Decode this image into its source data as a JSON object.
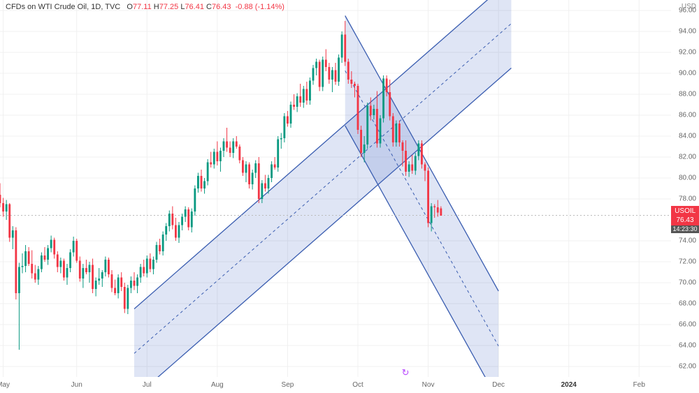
{
  "header": {
    "symbol_desc": "CFDs on WTI Crude Oil",
    "interval": "1D",
    "exchange": "TVC",
    "o_label": "O",
    "o_val": "77.11",
    "h_label": "H",
    "h_val": "77.25",
    "l_label": "L",
    "l_val": "76.41",
    "c_label": "C",
    "c_val": "76.43",
    "chg": "-0.88",
    "chg_pct": "(-1.14%)"
  },
  "yaxis": {
    "unit": "USD",
    "min": 61,
    "max": 97,
    "ticks": [
      62,
      64,
      66,
      68,
      70,
      72,
      74,
      78,
      80,
      82,
      84,
      86,
      88,
      90,
      92,
      94,
      96
    ],
    "price_tag": {
      "symbol": "USOIL",
      "value": "76.43",
      "countdown": "14:23:30",
      "price": 76.43
    }
  },
  "xaxis": {
    "start_idx": 0,
    "end_idx": 210,
    "ticks": [
      {
        "idx": 1,
        "label": "May"
      },
      {
        "idx": 24,
        "label": "Jun"
      },
      {
        "idx": 46,
        "label": "Jul"
      },
      {
        "idx": 68,
        "label": "Aug"
      },
      {
        "idx": 90,
        "label": "Sep"
      },
      {
        "idx": 112,
        "label": "Oct"
      },
      {
        "idx": 134,
        "label": "Nov"
      },
      {
        "idx": 156,
        "label": "Dec"
      },
      {
        "idx": 178,
        "label": "2024",
        "bold": true
      },
      {
        "idx": 200,
        "label": "Feb"
      }
    ]
  },
  "replay_marker_idx": 127,
  "colors": {
    "up_body": "#089981",
    "up_border": "#089981",
    "down_body": "#f23645",
    "down_border": "#f23645",
    "wick_up": "#089981",
    "wick_down": "#f23645",
    "channel_fill": "rgba(77,112,200,0.18)",
    "channel_line": "#3a5db0",
    "grid": "#f0f0f0",
    "priceline": "#bbbbbb",
    "background": "#ffffff"
  },
  "channels": [
    {
      "p1": {
        "idx": 42,
        "price": 67.5
      },
      "p2": {
        "idx": 160,
        "price": 99.0
      },
      "width_price": 8.5
    },
    {
      "p1": {
        "idx": 108,
        "price": 95.5
      },
      "p2": {
        "idx": 156,
        "price": 69.2
      },
      "width_price": 10.5
    }
  ],
  "candles": [
    {
      "i": 0,
      "o": 78.4,
      "h": 79.5,
      "l": 77.2,
      "c": 77.6
    },
    {
      "i": 1,
      "o": 77.6,
      "h": 78.1,
      "l": 76.3,
      "c": 76.8
    },
    {
      "i": 2,
      "o": 76.8,
      "h": 77.9,
      "l": 76.0,
      "c": 77.5
    },
    {
      "i": 3,
      "o": 77.5,
      "h": 77.6,
      "l": 73.9,
      "c": 74.3
    },
    {
      "i": 4,
      "o": 74.3,
      "h": 75.4,
      "l": 73.2,
      "c": 75.0
    },
    {
      "i": 5,
      "o": 75.0,
      "h": 75.3,
      "l": 68.4,
      "c": 69.0
    },
    {
      "i": 6,
      "o": 69.0,
      "h": 71.9,
      "l": 63.6,
      "c": 71.5
    },
    {
      "i": 7,
      "o": 71.5,
      "h": 72.8,
      "l": 70.9,
      "c": 71.6
    },
    {
      "i": 8,
      "o": 71.6,
      "h": 73.6,
      "l": 71.0,
      "c": 73.0
    },
    {
      "i": 9,
      "o": 73.0,
      "h": 73.4,
      "l": 71.6,
      "c": 71.8
    },
    {
      "i": 10,
      "o": 71.8,
      "h": 73.1,
      "l": 70.4,
      "c": 70.9
    },
    {
      "i": 11,
      "o": 70.9,
      "h": 71.7,
      "l": 70.0,
      "c": 70.3
    },
    {
      "i": 12,
      "o": 70.3,
      "h": 71.6,
      "l": 69.8,
      "c": 71.3
    },
    {
      "i": 13,
      "o": 71.3,
      "h": 72.9,
      "l": 71.0,
      "c": 72.6
    },
    {
      "i": 14,
      "o": 72.6,
      "h": 73.4,
      "l": 72.0,
      "c": 72.2
    },
    {
      "i": 15,
      "o": 72.2,
      "h": 73.6,
      "l": 71.7,
      "c": 73.3
    },
    {
      "i": 16,
      "o": 73.3,
      "h": 74.5,
      "l": 72.9,
      "c": 74.1
    },
    {
      "i": 17,
      "o": 74.1,
      "h": 74.3,
      "l": 72.3,
      "c": 72.7
    },
    {
      "i": 18,
      "o": 72.7,
      "h": 73.0,
      "l": 71.0,
      "c": 71.5
    },
    {
      "i": 19,
      "o": 71.5,
      "h": 72.4,
      "l": 70.9,
      "c": 72.1
    },
    {
      "i": 20,
      "o": 72.1,
      "h": 72.3,
      "l": 70.2,
      "c": 70.5
    },
    {
      "i": 21,
      "o": 70.5,
      "h": 71.8,
      "l": 69.8,
      "c": 71.4
    },
    {
      "i": 22,
      "o": 71.4,
      "h": 73.2,
      "l": 71.0,
      "c": 72.9
    },
    {
      "i": 23,
      "o": 72.9,
      "h": 74.4,
      "l": 72.5,
      "c": 74.0
    },
    {
      "i": 24,
      "o": 74.0,
      "h": 74.2,
      "l": 71.9,
      "c": 72.1
    },
    {
      "i": 25,
      "o": 72.1,
      "h": 72.5,
      "l": 70.1,
      "c": 70.4
    },
    {
      "i": 26,
      "o": 70.4,
      "h": 71.8,
      "l": 69.5,
      "c": 71.4
    },
    {
      "i": 27,
      "o": 71.4,
      "h": 72.2,
      "l": 70.8,
      "c": 71.0
    },
    {
      "i": 28,
      "o": 71.0,
      "h": 72.0,
      "l": 70.0,
      "c": 71.7
    },
    {
      "i": 29,
      "o": 71.7,
      "h": 72.3,
      "l": 69.0,
      "c": 69.4
    },
    {
      "i": 30,
      "o": 69.4,
      "h": 70.5,
      "l": 68.7,
      "c": 70.2
    },
    {
      "i": 31,
      "o": 70.2,
      "h": 71.4,
      "l": 69.8,
      "c": 70.4
    },
    {
      "i": 32,
      "o": 70.4,
      "h": 71.2,
      "l": 69.6,
      "c": 71.0
    },
    {
      "i": 33,
      "o": 71.0,
      "h": 72.5,
      "l": 70.6,
      "c": 72.2
    },
    {
      "i": 34,
      "o": 72.2,
      "h": 72.4,
      "l": 70.5,
      "c": 70.8
    },
    {
      "i": 35,
      "o": 70.8,
      "h": 71.2,
      "l": 69.1,
      "c": 69.5
    },
    {
      "i": 36,
      "o": 69.5,
      "h": 70.3,
      "l": 68.8,
      "c": 69.0
    },
    {
      "i": 37,
      "o": 69.0,
      "h": 70.8,
      "l": 68.5,
      "c": 70.5
    },
    {
      "i": 38,
      "o": 70.5,
      "h": 71.0,
      "l": 69.2,
      "c": 69.6
    },
    {
      "i": 39,
      "o": 69.6,
      "h": 70.0,
      "l": 67.1,
      "c": 67.5
    },
    {
      "i": 40,
      "o": 67.5,
      "h": 69.8,
      "l": 67.0,
      "c": 69.5
    },
    {
      "i": 41,
      "o": 69.5,
      "h": 70.6,
      "l": 69.0,
      "c": 70.2
    },
    {
      "i": 42,
      "o": 70.2,
      "h": 71.0,
      "l": 69.3,
      "c": 69.7
    },
    {
      "i": 43,
      "o": 69.7,
      "h": 70.8,
      "l": 69.0,
      "c": 70.5
    },
    {
      "i": 44,
      "o": 70.5,
      "h": 71.8,
      "l": 70.0,
      "c": 71.5
    },
    {
      "i": 45,
      "o": 71.5,
      "h": 72.2,
      "l": 70.6,
      "c": 70.9
    },
    {
      "i": 46,
      "o": 70.9,
      "h": 72.6,
      "l": 70.5,
      "c": 72.3
    },
    {
      "i": 47,
      "o": 72.3,
      "h": 72.8,
      "l": 71.0,
      "c": 71.3
    },
    {
      "i": 48,
      "o": 71.3,
      "h": 72.5,
      "l": 70.8,
      "c": 72.2
    },
    {
      "i": 49,
      "o": 72.2,
      "h": 73.9,
      "l": 71.9,
      "c": 73.6
    },
    {
      "i": 50,
      "o": 73.6,
      "h": 74.2,
      "l": 72.7,
      "c": 73.0
    },
    {
      "i": 51,
      "o": 73.0,
      "h": 74.9,
      "l": 72.6,
      "c": 74.6
    },
    {
      "i": 52,
      "o": 74.6,
      "h": 75.7,
      "l": 74.0,
      "c": 75.4
    },
    {
      "i": 53,
      "o": 75.4,
      "h": 76.9,
      "l": 74.9,
      "c": 76.6
    },
    {
      "i": 54,
      "o": 76.6,
      "h": 77.3,
      "l": 75.1,
      "c": 75.5
    },
    {
      "i": 55,
      "o": 75.5,
      "h": 76.2,
      "l": 74.0,
      "c": 74.3
    },
    {
      "i": 56,
      "o": 74.3,
      "h": 75.8,
      "l": 73.8,
      "c": 75.5
    },
    {
      "i": 57,
      "o": 75.5,
      "h": 76.6,
      "l": 75.0,
      "c": 76.3
    },
    {
      "i": 58,
      "o": 76.3,
      "h": 77.3,
      "l": 75.8,
      "c": 77.0
    },
    {
      "i": 59,
      "o": 77.0,
      "h": 77.2,
      "l": 75.0,
      "c": 75.3
    },
    {
      "i": 60,
      "o": 75.3,
      "h": 77.1,
      "l": 74.8,
      "c": 76.8
    },
    {
      "i": 61,
      "o": 76.8,
      "h": 79.3,
      "l": 76.4,
      "c": 79.0
    },
    {
      "i": 62,
      "o": 79.0,
      "h": 80.5,
      "l": 78.6,
      "c": 80.2
    },
    {
      "i": 63,
      "o": 80.2,
      "h": 80.8,
      "l": 78.7,
      "c": 79.0
    },
    {
      "i": 64,
      "o": 79.0,
      "h": 80.0,
      "l": 78.5,
      "c": 79.7
    },
    {
      "i": 65,
      "o": 79.7,
      "h": 81.8,
      "l": 79.3,
      "c": 81.5
    },
    {
      "i": 66,
      "o": 81.5,
      "h": 82.5,
      "l": 81.0,
      "c": 81.3
    },
    {
      "i": 67,
      "o": 81.3,
      "h": 82.8,
      "l": 80.9,
      "c": 82.5
    },
    {
      "i": 68,
      "o": 82.5,
      "h": 83.5,
      "l": 81.2,
      "c": 81.6
    },
    {
      "i": 69,
      "o": 81.6,
      "h": 82.9,
      "l": 80.6,
      "c": 82.6
    },
    {
      "i": 70,
      "o": 82.6,
      "h": 83.8,
      "l": 82.0,
      "c": 83.5
    },
    {
      "i": 71,
      "o": 83.5,
      "h": 84.8,
      "l": 82.5,
      "c": 82.9
    },
    {
      "i": 72,
      "o": 82.9,
      "h": 83.5,
      "l": 82.0,
      "c": 82.4
    },
    {
      "i": 73,
      "o": 82.4,
      "h": 83.8,
      "l": 81.9,
      "c": 83.5
    },
    {
      "i": 74,
      "o": 83.5,
      "h": 84.0,
      "l": 82.8,
      "c": 83.0
    },
    {
      "i": 75,
      "o": 83.0,
      "h": 83.2,
      "l": 81.4,
      "c": 81.7
    },
    {
      "i": 76,
      "o": 81.7,
      "h": 82.0,
      "l": 80.2,
      "c": 80.5
    },
    {
      "i": 77,
      "o": 80.5,
      "h": 81.6,
      "l": 79.6,
      "c": 81.3
    },
    {
      "i": 78,
      "o": 81.3,
      "h": 81.5,
      "l": 79.0,
      "c": 79.4
    },
    {
      "i": 79,
      "o": 79.4,
      "h": 80.8,
      "l": 78.9,
      "c": 80.5
    },
    {
      "i": 80,
      "o": 80.5,
      "h": 81.7,
      "l": 80.0,
      "c": 81.4
    },
    {
      "i": 81,
      "o": 81.4,
      "h": 82.0,
      "l": 77.6,
      "c": 78.0
    },
    {
      "i": 82,
      "o": 78.0,
      "h": 79.8,
      "l": 77.6,
      "c": 79.5
    },
    {
      "i": 83,
      "o": 79.5,
      "h": 80.3,
      "l": 78.7,
      "c": 79.0
    },
    {
      "i": 84,
      "o": 79.0,
      "h": 80.3,
      "l": 78.5,
      "c": 80.0
    },
    {
      "i": 85,
      "o": 80.0,
      "h": 81.6,
      "l": 79.6,
      "c": 81.3
    },
    {
      "i": 86,
      "o": 81.3,
      "h": 82.0,
      "l": 80.8,
      "c": 81.0
    },
    {
      "i": 87,
      "o": 81.0,
      "h": 84.0,
      "l": 80.6,
      "c": 83.7
    },
    {
      "i": 88,
      "o": 83.7,
      "h": 84.3,
      "l": 82.8,
      "c": 83.8
    },
    {
      "i": 89,
      "o": 83.8,
      "h": 86.2,
      "l": 83.4,
      "c": 85.9
    },
    {
      "i": 90,
      "o": 85.9,
      "h": 86.4,
      "l": 84.9,
      "c": 85.2
    },
    {
      "i": 91,
      "o": 85.2,
      "h": 87.3,
      "l": 84.8,
      "c": 87.0
    },
    {
      "i": 92,
      "o": 87.0,
      "h": 88.0,
      "l": 86.5,
      "c": 86.8
    },
    {
      "i": 93,
      "o": 86.8,
      "h": 88.1,
      "l": 86.3,
      "c": 87.8
    },
    {
      "i": 94,
      "o": 87.8,
      "h": 89.0,
      "l": 86.8,
      "c": 87.2
    },
    {
      "i": 95,
      "o": 87.2,
      "h": 88.8,
      "l": 86.7,
      "c": 88.5
    },
    {
      "i": 96,
      "o": 88.5,
      "h": 89.2,
      "l": 87.0,
      "c": 87.4
    },
    {
      "i": 97,
      "o": 87.4,
      "h": 89.6,
      "l": 87.0,
      "c": 89.3
    },
    {
      "i": 98,
      "o": 89.3,
      "h": 90.8,
      "l": 88.9,
      "c": 90.5
    },
    {
      "i": 99,
      "o": 90.5,
      "h": 91.4,
      "l": 89.8,
      "c": 91.1
    },
    {
      "i": 100,
      "o": 91.1,
      "h": 91.3,
      "l": 88.3,
      "c": 88.7
    },
    {
      "i": 101,
      "o": 88.7,
      "h": 91.6,
      "l": 88.3,
      "c": 91.3
    },
    {
      "i": 102,
      "o": 91.3,
      "h": 92.3,
      "l": 90.2,
      "c": 90.6
    },
    {
      "i": 103,
      "o": 90.6,
      "h": 91.0,
      "l": 89.0,
      "c": 89.4
    },
    {
      "i": 104,
      "o": 89.4,
      "h": 90.6,
      "l": 88.2,
      "c": 90.3
    },
    {
      "i": 105,
      "o": 90.3,
      "h": 91.0,
      "l": 88.9,
      "c": 89.2
    },
    {
      "i": 106,
      "o": 89.2,
      "h": 91.8,
      "l": 88.8,
      "c": 91.5
    },
    {
      "i": 107,
      "o": 91.5,
      "h": 94.0,
      "l": 91.0,
      "c": 93.7
    },
    {
      "i": 108,
      "o": 93.7,
      "h": 95.0,
      "l": 90.7,
      "c": 91.1
    },
    {
      "i": 109,
      "o": 91.1,
      "h": 91.4,
      "l": 89.0,
      "c": 89.4
    },
    {
      "i": 110,
      "o": 89.4,
      "h": 90.2,
      "l": 88.6,
      "c": 89.0
    },
    {
      "i": 111,
      "o": 89.0,
      "h": 89.2,
      "l": 87.7,
      "c": 88.8
    },
    {
      "i": 112,
      "o": 88.8,
      "h": 89.0,
      "l": 84.2,
      "c": 84.6
    },
    {
      "i": 113,
      "o": 84.6,
      "h": 85.0,
      "l": 82.0,
      "c": 82.4
    },
    {
      "i": 114,
      "o": 82.4,
      "h": 84.0,
      "l": 81.5,
      "c": 83.2
    },
    {
      "i": 115,
      "o": 83.2,
      "h": 87.2,
      "l": 82.8,
      "c": 86.9
    },
    {
      "i": 116,
      "o": 86.9,
      "h": 87.7,
      "l": 85.5,
      "c": 86.0
    },
    {
      "i": 117,
      "o": 86.0,
      "h": 87.0,
      "l": 85.6,
      "c": 86.6
    },
    {
      "i": 118,
      "o": 86.6,
      "h": 88.3,
      "l": 82.9,
      "c": 83.3
    },
    {
      "i": 119,
      "o": 83.3,
      "h": 86.0,
      "l": 82.9,
      "c": 85.7
    },
    {
      "i": 120,
      "o": 85.7,
      "h": 89.8,
      "l": 85.3,
      "c": 89.5
    },
    {
      "i": 121,
      "o": 89.5,
      "h": 89.8,
      "l": 87.8,
      "c": 88.2
    },
    {
      "i": 122,
      "o": 88.2,
      "h": 89.4,
      "l": 85.5,
      "c": 85.9
    },
    {
      "i": 123,
      "o": 85.9,
      "h": 86.2,
      "l": 83.0,
      "c": 83.4
    },
    {
      "i": 124,
      "o": 83.4,
      "h": 85.5,
      "l": 83.0,
      "c": 85.2
    },
    {
      "i": 125,
      "o": 85.2,
      "h": 85.5,
      "l": 83.0,
      "c": 83.4
    },
    {
      "i": 126,
      "o": 83.4,
      "h": 83.6,
      "l": 81.1,
      "c": 82.6
    },
    {
      "i": 127,
      "o": 82.6,
      "h": 83.6,
      "l": 80.2,
      "c": 80.6
    },
    {
      "i": 128,
      "o": 80.6,
      "h": 81.6,
      "l": 80.1,
      "c": 81.3
    },
    {
      "i": 129,
      "o": 81.3,
      "h": 82.2,
      "l": 80.4,
      "c": 80.7
    },
    {
      "i": 130,
      "o": 80.7,
      "h": 82.4,
      "l": 80.3,
      "c": 82.1
    },
    {
      "i": 131,
      "o": 82.1,
      "h": 83.6,
      "l": 81.7,
      "c": 83.3
    },
    {
      "i": 132,
      "o": 83.3,
      "h": 83.6,
      "l": 80.9,
      "c": 81.3
    },
    {
      "i": 133,
      "o": 81.3,
      "h": 81.5,
      "l": 79.7,
      "c": 80.7
    },
    {
      "i": 134,
      "o": 80.7,
      "h": 81.0,
      "l": 75.3,
      "c": 75.7
    },
    {
      "i": 135,
      "o": 75.7,
      "h": 77.6,
      "l": 74.9,
      "c": 77.3
    },
    {
      "i": 136,
      "o": 77.3,
      "h": 77.5,
      "l": 76.2,
      "c": 77.2
    },
    {
      "i": 137,
      "o": 77.2,
      "h": 77.9,
      "l": 76.3,
      "c": 76.7
    },
    {
      "i": 138,
      "o": 77.1,
      "h": 77.3,
      "l": 76.4,
      "c": 76.4
    }
  ]
}
